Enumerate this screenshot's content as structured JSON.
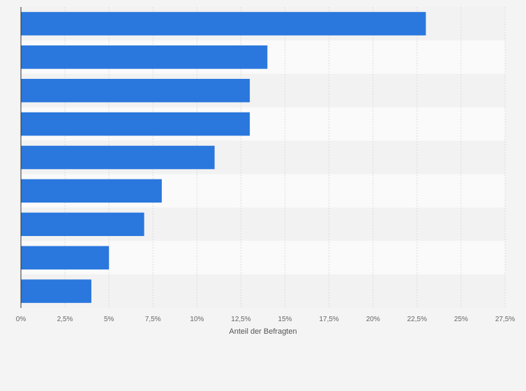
{
  "chart_data": {
    "type": "bar",
    "orientation": "horizontal",
    "categories": [
      "",
      "",
      "",
      "",
      "",
      "",
      "",
      "",
      ""
    ],
    "values": [
      23,
      14,
      13,
      13,
      11,
      8,
      7,
      5,
      4
    ],
    "xlabel": "Anteil der Befragten",
    "ylabel": "",
    "xlim": [
      0,
      27.5
    ],
    "xticks": [
      "0%",
      "2,5%",
      "5%",
      "7,5%",
      "10%",
      "12,5%",
      "15%",
      "17,5%",
      "20%",
      "22,5%",
      "25%",
      "27,5%"
    ],
    "grid": true,
    "legend": "none",
    "colors": {
      "bar": "#2a77dd",
      "background": "#f4f4f4",
      "band_light": "#fafafa",
      "band_dark": "#f2f2f2",
      "grid": "#dcdcdc",
      "axis": "#333333"
    }
  }
}
